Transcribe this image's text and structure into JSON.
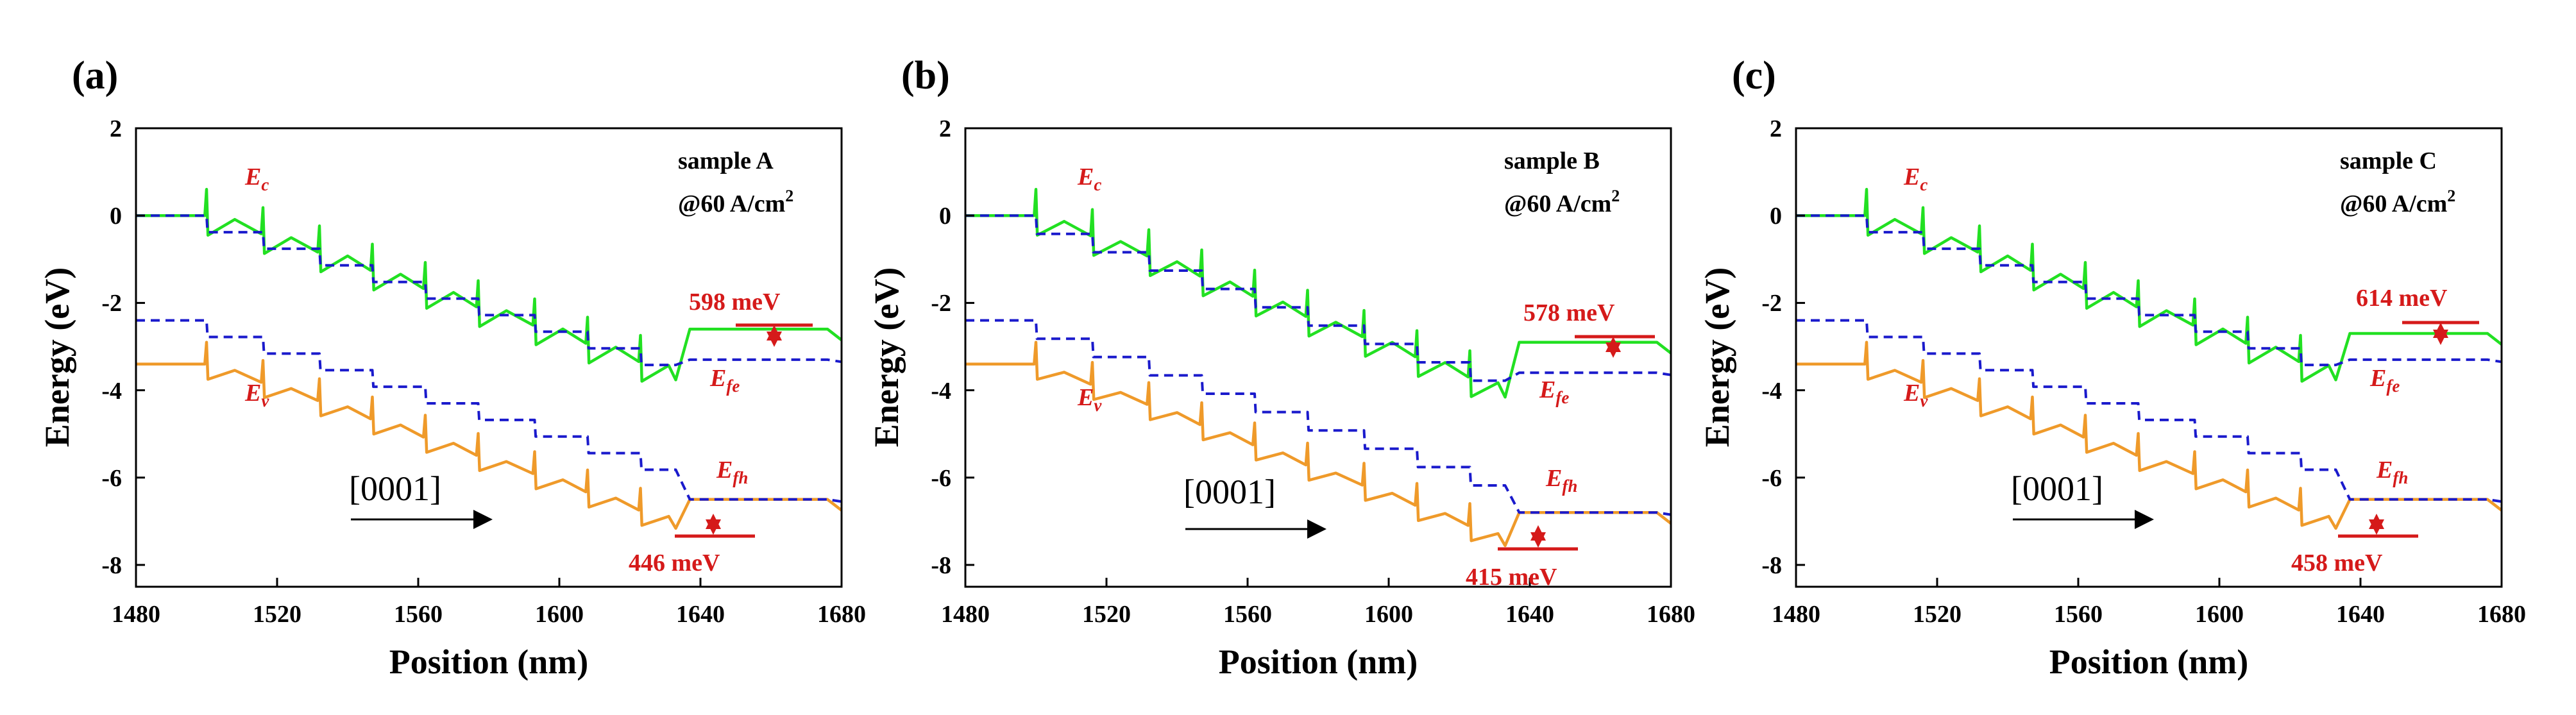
{
  "chart_data": [
    {
      "type": "line",
      "panel_label": "(a)",
      "sample_label": "sample A",
      "current_label": "@60 A/cm",
      "current_sup": "2",
      "xlabel": "Position (nm)",
      "ylabel": "Energy (eV)",
      "xlim": [
        1480,
        1680
      ],
      "ylim": [
        -8.5,
        2
      ],
      "x_ticks": [
        "1480",
        "1520",
        "1560",
        "1600",
        "1640",
        "1680"
      ],
      "y_ticks": [
        "2",
        "0",
        "-2",
        "-4",
        "-6",
        "-8"
      ],
      "series": [
        {
          "name": "Ec",
          "color": "#22e022",
          "style": "solid",
          "start": 0.0,
          "drop": 0.19,
          "spike": 0.6,
          "settle": 0.45,
          "end": -2.6
        },
        {
          "name": "Efe",
          "color": "#1a1acc",
          "style": "dashed",
          "start": 0.0,
          "drop": 0.19,
          "end": -3.3
        },
        {
          "name": "Ev",
          "color": "#ef9a2a",
          "style": "solid",
          "start": -3.4,
          "drop": 0.19,
          "spike": 0.5,
          "settle": 0.35,
          "end": -6.5
        },
        {
          "name": "Efh",
          "color": "#1a1acc",
          "style": "dashed",
          "start": -2.4,
          "drop": 0.19,
          "end": -6.5
        }
      ],
      "annotations": {
        "Ec": {
          "main": "E",
          "sub": "c"
        },
        "Efe": {
          "main": "E",
          "sub": "fe"
        },
        "Ev": {
          "main": "E",
          "sub": "v"
        },
        "Efh": {
          "main": "E",
          "sub": "fh"
        },
        "electron_offset": "598 meV",
        "hole_offset": "446 meV",
        "direction": "[0001]"
      }
    },
    {
      "type": "line",
      "panel_label": "(b)",
      "sample_label": "sample B",
      "current_label": "@60 A/cm",
      "current_sup": "2",
      "xlabel": "Position (nm)",
      "ylabel": "Energy (eV)",
      "xlim": [
        1480,
        1680
      ],
      "ylim": [
        -8.5,
        2
      ],
      "x_ticks": [
        "1480",
        "1520",
        "1560",
        "1600",
        "1640",
        "1680"
      ],
      "y_ticks": [
        "2",
        "0",
        "-2",
        "-4",
        "-6",
        "-8"
      ],
      "series": [
        {
          "name": "Ec",
          "color": "#22e022",
          "style": "solid",
          "start": 0.0,
          "drop": 0.21,
          "spike": 0.6,
          "settle": 0.45,
          "end": -2.9
        },
        {
          "name": "Efe",
          "color": "#1a1acc",
          "style": "dashed",
          "start": 0.0,
          "drop": 0.21,
          "end": -3.6
        },
        {
          "name": "Ev",
          "color": "#ef9a2a",
          "style": "solid",
          "start": -3.4,
          "drop": 0.21,
          "spike": 0.5,
          "settle": 0.35,
          "end": -6.8
        },
        {
          "name": "Efh",
          "color": "#1a1acc",
          "style": "dashed",
          "start": -2.4,
          "drop": 0.21,
          "end": -6.8
        }
      ],
      "annotations": {
        "Ec": {
          "main": "E",
          "sub": "c"
        },
        "Efe": {
          "main": "E",
          "sub": "fe"
        },
        "Ev": {
          "main": "E",
          "sub": "v"
        },
        "Efh": {
          "main": "E",
          "sub": "fh"
        },
        "electron_offset": "578 meV",
        "hole_offset": "415 meV",
        "direction": "[0001]"
      }
    },
    {
      "type": "line",
      "panel_label": "(c)",
      "sample_label": "sample C",
      "current_label": "@60 A/cm",
      "current_sup": "2",
      "xlabel": "Position (nm)",
      "ylabel": "Energy (eV)",
      "xlim": [
        1480,
        1680
      ],
      "ylim": [
        -8.5,
        2
      ],
      "x_ticks": [
        "1480",
        "1520",
        "1560",
        "1600",
        "1640",
        "1680"
      ],
      "y_ticks": [
        "2",
        "0",
        "-2",
        "-4",
        "-6",
        "-8"
      ],
      "series": [
        {
          "name": "Ec",
          "color": "#22e022",
          "style": "solid",
          "start": 0.0,
          "drop": 0.19,
          "spike": 0.6,
          "settle": 0.45,
          "end": -2.7
        },
        {
          "name": "Efe",
          "color": "#1a1acc",
          "style": "dashed",
          "start": 0.0,
          "drop": 0.19,
          "end": -3.3
        },
        {
          "name": "Ev",
          "color": "#ef9a2a",
          "style": "solid",
          "start": -3.4,
          "drop": 0.19,
          "spike": 0.5,
          "settle": 0.35,
          "end": -6.5
        },
        {
          "name": "Efh",
          "color": "#1a1acc",
          "style": "dashed",
          "start": -2.4,
          "drop": 0.19,
          "end": -6.5
        }
      ],
      "annotations": {
        "Ec": {
          "main": "E",
          "sub": "c"
        },
        "Efe": {
          "main": "E",
          "sub": "fe"
        },
        "Ev": {
          "main": "E",
          "sub": "v"
        },
        "Efh": {
          "main": "E",
          "sub": "fh"
        },
        "electron_offset": "614 meV",
        "hole_offset": "458 meV",
        "direction": "[0001]"
      }
    }
  ],
  "colors": {
    "conduction_band": "#22e022",
    "valence_band": "#ef9a2a",
    "quasi_fermi": "#1a1acc",
    "annotation": "#d51a1a"
  }
}
